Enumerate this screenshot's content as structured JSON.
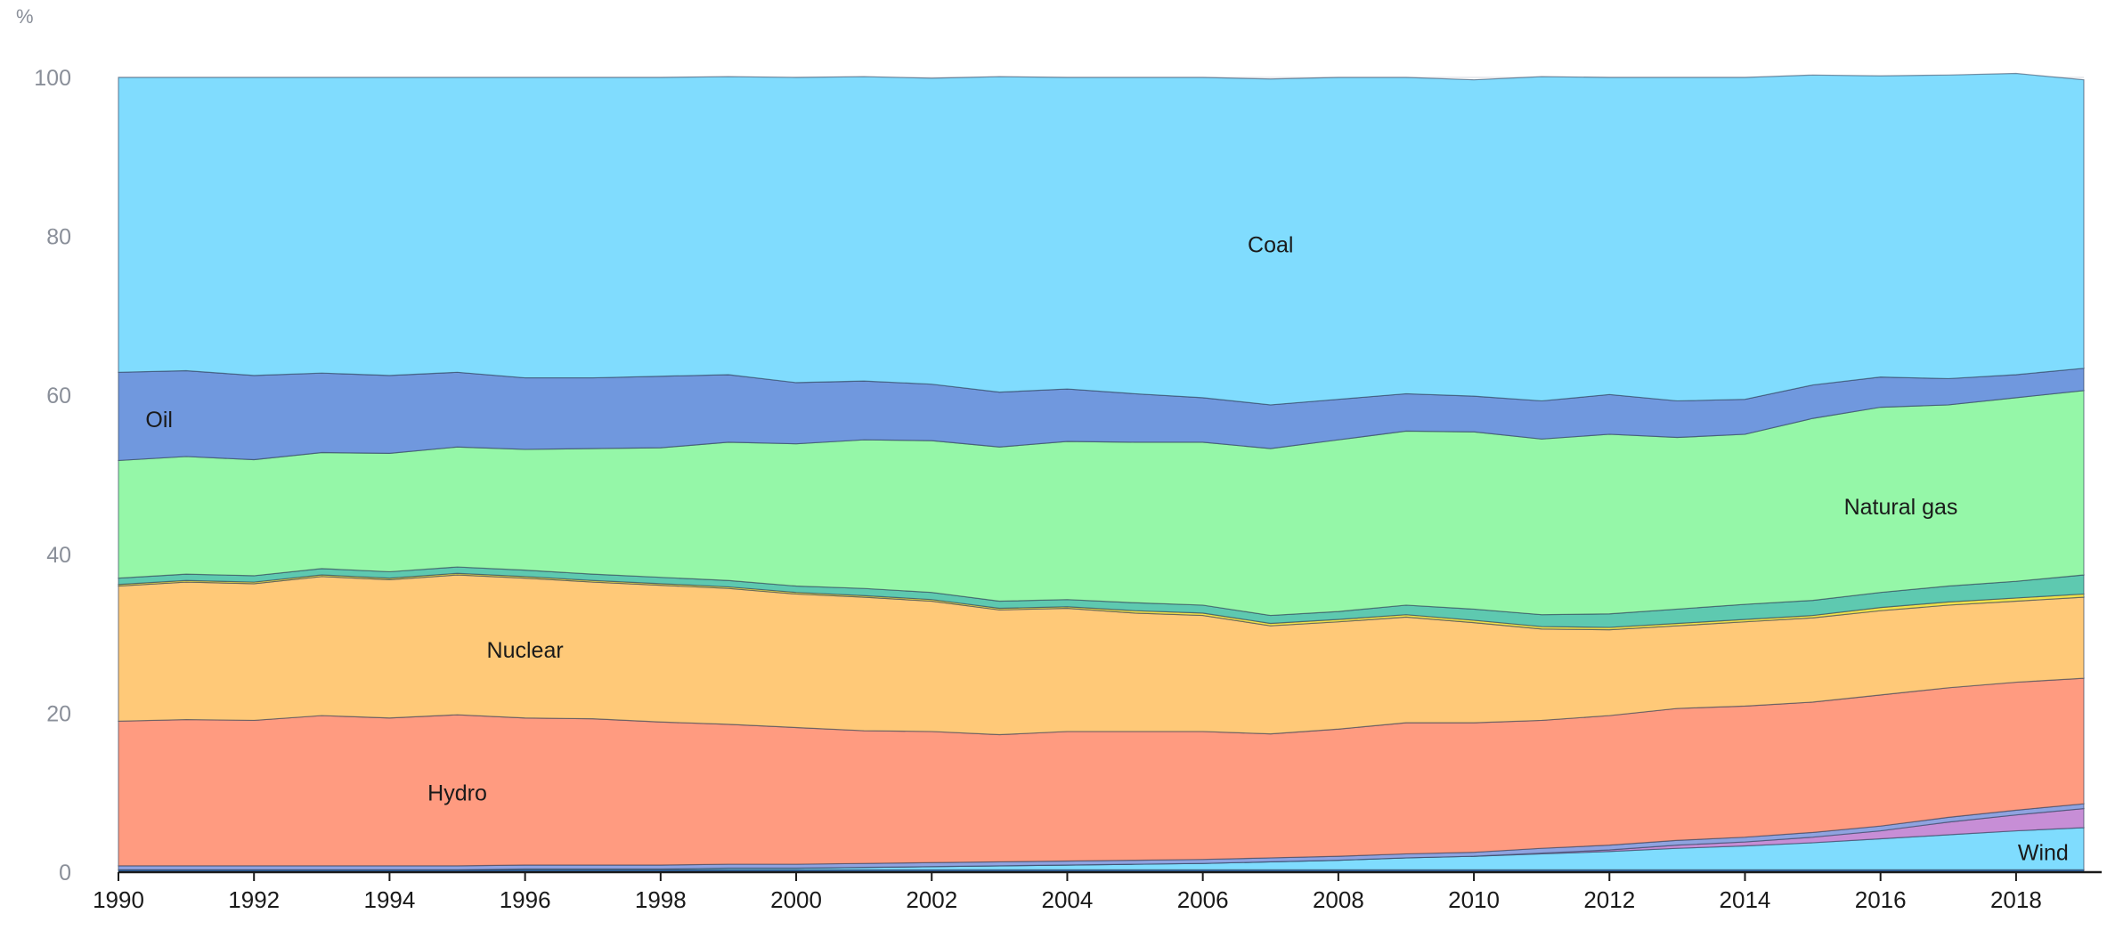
{
  "chart_data": {
    "type": "area",
    "stacked": true,
    "ylabel": "%",
    "ylim": [
      0,
      100
    ],
    "yticks": [
      0,
      20,
      40,
      60,
      80,
      100
    ],
    "xlim": [
      1990,
      2019
    ],
    "xticks": [
      1990,
      1992,
      1994,
      1996,
      1998,
      2000,
      2002,
      2004,
      2006,
      2008,
      2010,
      2012,
      2014,
      2016,
      2018
    ],
    "grid": true,
    "legend": "none",
    "x": [
      1990,
      1991,
      1992,
      1993,
      1994,
      1995,
      1996,
      1997,
      1998,
      1999,
      2000,
      2001,
      2002,
      2003,
      2004,
      2005,
      2006,
      2007,
      2008,
      2009,
      2010,
      2011,
      2012,
      2013,
      2014,
      2015,
      2016,
      2017,
      2018,
      2019
    ],
    "series": [
      {
        "name": "",
        "color": "#2a6ec0",
        "values": [
          0.3,
          0.3,
          0.3,
          0.3,
          0.3,
          0.3,
          0.3,
          0.3,
          0.3,
          0.3,
          0.3,
          0.3,
          0.3,
          0.3,
          0.3,
          0.3,
          0.3,
          0.3,
          0.3,
          0.3,
          0.3,
          0.3,
          0.3,
          0.3,
          0.3,
          0.3,
          0.3,
          0.3,
          0.3,
          0.3
        ]
      },
      {
        "name": "Wind",
        "color": "#7fdcfe",
        "values": [
          0.0,
          0.0,
          0.0,
          0.0,
          0.0,
          0.0,
          0.1,
          0.1,
          0.1,
          0.2,
          0.2,
          0.3,
          0.4,
          0.5,
          0.6,
          0.7,
          0.8,
          1.0,
          1.2,
          1.5,
          1.7,
          2.0,
          2.3,
          2.7,
          3.0,
          3.4,
          3.9,
          4.4,
          4.9,
          5.3
        ]
      },
      {
        "name": "",
        "color": "#c78ed6",
        "values": [
          0.0,
          0.0,
          0.0,
          0.0,
          0.0,
          0.0,
          0.0,
          0.0,
          0.0,
          0.0,
          0.0,
          0.0,
          0.0,
          0.0,
          0.0,
          0.0,
          0.0,
          0.0,
          0.0,
          0.0,
          0.0,
          0.1,
          0.2,
          0.4,
          0.5,
          0.7,
          1.0,
          1.6,
          2.0,
          2.4
        ]
      },
      {
        "name": "",
        "color": "#8fa3e0",
        "values": [
          0.5,
          0.5,
          0.5,
          0.5,
          0.5,
          0.5,
          0.5,
          0.5,
          0.5,
          0.5,
          0.5,
          0.5,
          0.5,
          0.5,
          0.5,
          0.5,
          0.5,
          0.5,
          0.5,
          0.5,
          0.5,
          0.6,
          0.6,
          0.6,
          0.6,
          0.6,
          0.6,
          0.6,
          0.6,
          0.6
        ]
      },
      {
        "name": "Hydro",
        "color": "#ff9b80",
        "values": [
          18.2,
          18.4,
          18.3,
          18.9,
          18.6,
          19.0,
          18.5,
          18.4,
          18.0,
          17.6,
          17.2,
          16.7,
          16.5,
          16.0,
          16.3,
          16.2,
          16.1,
          15.6,
          16.0,
          16.5,
          16.3,
          16.1,
          16.3,
          16.6,
          16.5,
          16.4,
          16.5,
          16.3,
          16.1,
          15.8
        ]
      },
      {
        "name": "Nuclear",
        "color": "#ffc978",
        "values": [
          17.0,
          17.3,
          17.2,
          17.5,
          17.4,
          17.6,
          17.6,
          17.2,
          17.2,
          17.1,
          16.8,
          16.8,
          16.4,
          15.7,
          15.5,
          14.9,
          14.6,
          13.6,
          13.5,
          13.3,
          12.6,
          11.5,
          10.8,
          10.4,
          10.6,
          10.6,
          10.6,
          10.4,
          10.2,
          10.2
        ]
      },
      {
        "name": "",
        "color": "#f2e24a",
        "values": [
          0.2,
          0.2,
          0.2,
          0.2,
          0.2,
          0.2,
          0.2,
          0.2,
          0.2,
          0.2,
          0.2,
          0.2,
          0.2,
          0.2,
          0.2,
          0.3,
          0.3,
          0.3,
          0.3,
          0.3,
          0.3,
          0.3,
          0.3,
          0.3,
          0.3,
          0.3,
          0.4,
          0.4,
          0.4,
          0.4
        ]
      },
      {
        "name": "",
        "color": "#5ec9b0",
        "values": [
          0.8,
          0.8,
          0.8,
          0.8,
          0.8,
          0.8,
          0.8,
          0.8,
          0.8,
          0.8,
          0.8,
          0.9,
          0.9,
          0.9,
          0.9,
          1.0,
          1.0,
          1.0,
          1.0,
          1.2,
          1.4,
          1.5,
          1.7,
          1.8,
          1.9,
          1.9,
          1.9,
          2.0,
          2.1,
          2.4
        ]
      },
      {
        "name": "Natural gas",
        "color": "#95f7a8",
        "values": [
          14.8,
          14.8,
          14.6,
          14.6,
          14.9,
          15.1,
          15.2,
          15.8,
          16.3,
          17.4,
          17.9,
          18.7,
          19.1,
          19.4,
          19.9,
          20.2,
          20.5,
          21.0,
          21.6,
          21.9,
          22.3,
          22.1,
          22.6,
          21.6,
          21.4,
          22.9,
          23.3,
          22.8,
          23.1,
          23.2
        ]
      },
      {
        "name": "Oil",
        "color": "#7098de",
        "values": [
          11.1,
          10.8,
          10.6,
          10.0,
          9.8,
          9.4,
          9.0,
          8.9,
          9.0,
          8.5,
          7.7,
          7.4,
          7.1,
          6.9,
          6.6,
          6.1,
          5.6,
          5.5,
          5.1,
          4.7,
          4.5,
          4.8,
          5.0,
          4.6,
          4.4,
          4.2,
          3.8,
          3.3,
          2.9,
          2.8
        ]
      },
      {
        "name": "Coal",
        "color": "#80dcfe",
        "values": [
          37.1,
          36.9,
          37.5,
          37.2,
          37.5,
          37.1,
          37.8,
          37.8,
          37.6,
          37.5,
          38.4,
          38.3,
          38.5,
          39.7,
          39.2,
          39.8,
          40.3,
          41.0,
          40.5,
          39.8,
          39.8,
          40.8,
          39.9,
          40.7,
          40.5,
          39.0,
          37.9,
          38.2,
          37.9,
          36.3
        ]
      }
    ],
    "annotations": [
      {
        "text": "Coal",
        "x": 2007.0,
        "y": 79
      },
      {
        "text": "Oil",
        "x": 1990.6,
        "y": 57
      },
      {
        "text": "Natural gas",
        "x": 2016.3,
        "y": 46
      },
      {
        "text": "Nuclear",
        "x": 1996.0,
        "y": 28
      },
      {
        "text": "Hydro",
        "x": 1995.0,
        "y": 10
      },
      {
        "text": "Wind",
        "x": 2018.4,
        "y": 2.5
      }
    ]
  }
}
